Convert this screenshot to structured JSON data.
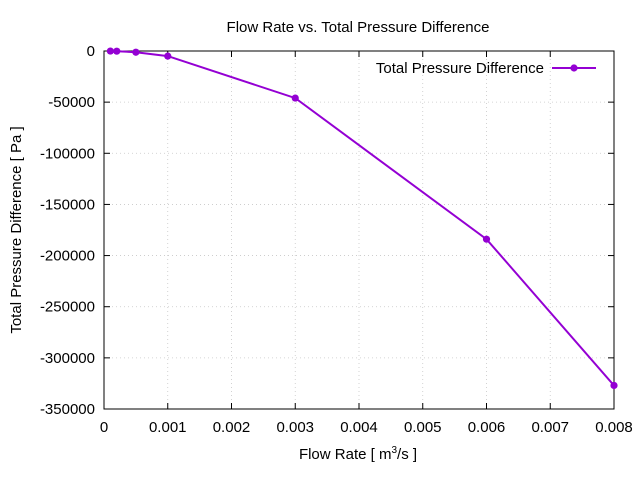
{
  "chart_data": {
    "type": "line",
    "title": "Flow Rate vs. Total Pressure Difference",
    "xlabel": {
      "prefix": "Flow Rate [ m",
      "sup": "3",
      "suffix": "/s ]"
    },
    "ylabel": "Total Pressure Difference [ Pa ]",
    "xlim": [
      0,
      0.008
    ],
    "ylim": [
      -350000,
      0
    ],
    "xticks": [
      0,
      0.001,
      0.002,
      0.003,
      0.004,
      0.005,
      0.006,
      0.007,
      0.008
    ],
    "xtick_labels": [
      "0",
      "0.001",
      "0.002",
      "0.003",
      "0.004",
      "0.005",
      "0.006",
      "0.007",
      "0.008"
    ],
    "yticks": [
      0,
      -50000,
      -100000,
      -150000,
      -200000,
      -250000,
      -300000,
      -350000
    ],
    "ytick_labels": [
      "0",
      "-50000",
      "-100000",
      "-150000",
      "-200000",
      "-250000",
      "-300000",
      "-350000"
    ],
    "grid": true,
    "legend_position": "top-right",
    "series": [
      {
        "name": "Total Pressure Difference",
        "color": "#9400d3",
        "x": [
          0.0001,
          0.0002,
          0.0005,
          0.001,
          0.003,
          0.006,
          0.008
        ],
        "y": [
          -50,
          -200,
          -1200,
          -5000,
          -46000,
          -184000,
          -327000
        ]
      }
    ]
  }
}
